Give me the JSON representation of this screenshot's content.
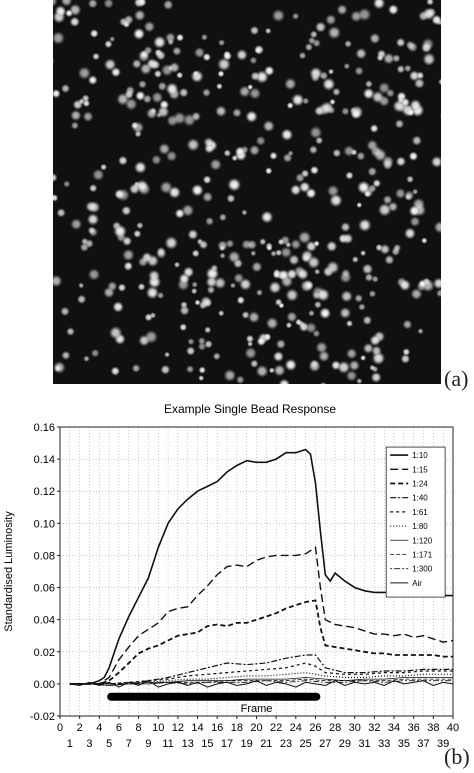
{
  "panels": {
    "a_label": "(a)",
    "b_label": "(b)"
  },
  "micrograph": {
    "description_icon": "fluorescent-bead-micrograph"
  },
  "chart_data": {
    "type": "line",
    "title": "Example Single Bead Response",
    "xlabel": "Frame",
    "ylabel": "Standardised Luminosity",
    "xlim": [
      0,
      40
    ],
    "ylim": [
      -0.02,
      0.16
    ],
    "yticks": [
      -0.02,
      0,
      0.02,
      0.04,
      0.06,
      0.08,
      0.1,
      0.12,
      0.14,
      0.16
    ],
    "ytick_labels": [
      "-0.02",
      "0.00",
      "0.02",
      "0.04",
      "0.06",
      "0.08",
      "0.10",
      "0.12",
      "0.14",
      "0.16"
    ],
    "xticks_top": [
      0,
      2,
      4,
      6,
      8,
      10,
      12,
      14,
      16,
      18,
      20,
      22,
      24,
      26,
      28,
      30,
      32,
      34,
      36,
      38,
      40
    ],
    "xticks_bottom": [
      1,
      3,
      5,
      7,
      9,
      11,
      13,
      15,
      17,
      19,
      21,
      23,
      25,
      27,
      29,
      31,
      33,
      35,
      37,
      39
    ],
    "grid": true,
    "legend_position": "top-right",
    "exposure_bar": {
      "x_start": 4.8,
      "x_end": 26.5,
      "y": -0.008
    },
    "series": [
      {
        "name": "1:10",
        "dash": "",
        "width": 1.6,
        "x": [
          1,
          2,
          3,
          4,
          4.5,
          5,
          6,
          7,
          8,
          9,
          10,
          11,
          12,
          13,
          14,
          15,
          16,
          17,
          18,
          19,
          20,
          21,
          22,
          23,
          24,
          25,
          25.5,
          26,
          26.5,
          27,
          27.5,
          28,
          29,
          30,
          31,
          32,
          33,
          34,
          35,
          36,
          37,
          38,
          39,
          40
        ],
        "y": [
          0,
          0,
          0,
          0.002,
          0.004,
          0.01,
          0.028,
          0.042,
          0.054,
          0.066,
          0.085,
          0.1,
          0.109,
          0.115,
          0.12,
          0.123,
          0.126,
          0.132,
          0.136,
          0.139,
          0.138,
          0.138,
          0.14,
          0.144,
          0.144,
          0.146,
          0.143,
          0.125,
          0.095,
          0.068,
          0.064,
          0.069,
          0.064,
          0.06,
          0.058,
          0.057,
          0.057,
          0.057,
          0.056,
          0.056,
          0.056,
          0.056,
          0.055,
          0.055
        ]
      },
      {
        "name": "1:15",
        "dash": "8,4",
        "width": 1.4,
        "x": [
          1,
          2,
          3,
          4,
          5,
          6,
          7,
          8,
          9,
          10,
          11,
          12,
          13,
          14,
          15,
          16,
          17,
          18,
          19,
          20,
          21,
          22,
          23,
          24,
          25,
          26,
          26.5,
          27,
          28,
          29,
          30,
          31,
          32,
          33,
          34,
          35,
          36,
          37,
          38,
          39,
          40
        ],
        "y": [
          0,
          0,
          0,
          0,
          0.004,
          0.015,
          0.023,
          0.03,
          0.034,
          0.038,
          0.045,
          0.047,
          0.048,
          0.055,
          0.061,
          0.068,
          0.073,
          0.074,
          0.073,
          0.077,
          0.079,
          0.08,
          0.08,
          0.08,
          0.081,
          0.085,
          0.06,
          0.04,
          0.037,
          0.036,
          0.035,
          0.033,
          0.031,
          0.031,
          0.03,
          0.031,
          0.029,
          0.03,
          0.028,
          0.026,
          0.027
        ]
      },
      {
        "name": "1:24",
        "dash": "5,3",
        "width": 1.8,
        "x": [
          1,
          2,
          3,
          4,
          5,
          6,
          7,
          8,
          9,
          10,
          11,
          12,
          13,
          14,
          15,
          16,
          17,
          18,
          19,
          20,
          21,
          22,
          23,
          24,
          25,
          26,
          26.5,
          27,
          28,
          29,
          30,
          31,
          32,
          33,
          34,
          35,
          36,
          37,
          38,
          39,
          40
        ],
        "y": [
          0,
          0,
          0,
          0,
          0.002,
          0.007,
          0.013,
          0.019,
          0.022,
          0.024,
          0.027,
          0.03,
          0.031,
          0.032,
          0.036,
          0.037,
          0.036,
          0.038,
          0.038,
          0.04,
          0.042,
          0.044,
          0.047,
          0.049,
          0.051,
          0.052,
          0.035,
          0.024,
          0.023,
          0.022,
          0.021,
          0.02,
          0.019,
          0.019,
          0.018,
          0.018,
          0.018,
          0.018,
          0.018,
          0.017,
          0.017
        ]
      },
      {
        "name": "1:40",
        "dash": "6,2,2,2",
        "width": 1.2,
        "x": [
          1,
          3,
          5,
          7,
          9,
          11,
          13,
          15,
          17,
          19,
          21,
          23,
          25,
          26,
          27,
          29,
          31,
          33,
          35,
          37,
          39,
          40
        ],
        "y": [
          0,
          0,
          0,
          0,
          0.002,
          0.004,
          0.007,
          0.01,
          0.013,
          0.012,
          0.013,
          0.016,
          0.018,
          0.018,
          0.01,
          0.007,
          0.007,
          0.008,
          0.008,
          0.009,
          0.009,
          0.009
        ]
      },
      {
        "name": "1:61",
        "dash": "3,3",
        "width": 1.2,
        "x": [
          1,
          3,
          5,
          7,
          9,
          11,
          13,
          15,
          17,
          19,
          21,
          23,
          25,
          26,
          27,
          29,
          31,
          33,
          35,
          37,
          39,
          40
        ],
        "y": [
          0,
          0,
          0,
          0.001,
          0.002,
          0.003,
          0.005,
          0.006,
          0.007,
          0.008,
          0.009,
          0.01,
          0.013,
          0.011,
          0.007,
          0.006,
          0.006,
          0.007,
          0.007,
          0.008,
          0.008,
          0.008
        ]
      },
      {
        "name": "1:80",
        "dash": "1,2",
        "width": 1.2,
        "x": [
          1,
          3,
          5,
          7,
          9,
          11,
          13,
          15,
          17,
          19,
          21,
          23,
          25,
          27,
          29,
          31,
          33,
          35,
          37,
          39,
          40
        ],
        "y": [
          0,
          0,
          0,
          0.001,
          0.001,
          0.002,
          0.003,
          0.003,
          0.004,
          0.005,
          0.005,
          0.006,
          0.007,
          0.005,
          0.004,
          0.004,
          0.005,
          0.005,
          0.006,
          0.006,
          0.006
        ]
      },
      {
        "name": "1:120",
        "dash": "",
        "width": 0.8,
        "x": [
          1,
          3,
          5,
          7,
          9,
          11,
          13,
          15,
          17,
          19,
          21,
          23,
          25,
          27,
          29,
          31,
          33,
          35,
          37,
          39,
          40
        ],
        "y": [
          0,
          0,
          -0.001,
          0,
          0.001,
          0.001,
          0.002,
          0.002,
          0.002,
          0.003,
          0.003,
          0.003,
          0.004,
          0.003,
          0.002,
          0.003,
          0.003,
          0.004,
          0.004,
          0.004,
          0.004
        ]
      },
      {
        "name": "1:171",
        "dash": "4,2",
        "width": 0.8,
        "x": [
          1,
          3,
          5,
          7,
          9,
          11,
          13,
          15,
          17,
          19,
          21,
          23,
          25,
          27,
          29,
          31,
          33,
          35,
          37,
          39,
          40
        ],
        "y": [
          0,
          0,
          0,
          0,
          0,
          0.001,
          0.001,
          0.001,
          0.002,
          0.002,
          0.002,
          0.002,
          0.003,
          0.002,
          0.002,
          0.002,
          0.002,
          0.003,
          0.003,
          0.003,
          0.003
        ]
      },
      {
        "name": "1:300",
        "dash": "2,2,6,2",
        "width": 0.8,
        "x": [
          1,
          3,
          5,
          7,
          9,
          11,
          13,
          15,
          17,
          19,
          21,
          23,
          25,
          27,
          29,
          31,
          33,
          35,
          37,
          39,
          40
        ],
        "y": [
          0,
          0,
          -0.001,
          0,
          0,
          0.001,
          0,
          0.001,
          0.001,
          0.001,
          0.002,
          0.001,
          0.002,
          0.001,
          0.001,
          0.002,
          0.001,
          0.002,
          0.002,
          0.002,
          0.002
        ]
      },
      {
        "name": "Air",
        "dash": "",
        "width": 1.0,
        "x": [
          1,
          2,
          3,
          4,
          5,
          6,
          7,
          8,
          9,
          10,
          11,
          12,
          13,
          14,
          15,
          16,
          17,
          18,
          19,
          20,
          21,
          22,
          23,
          24,
          25,
          26,
          27,
          28,
          29,
          30,
          31,
          32,
          33,
          34,
          35,
          36,
          37,
          38,
          39,
          40
        ],
        "y": [
          0,
          -0.001,
          0.001,
          -0.001,
          0.001,
          -0.002,
          0.001,
          -0.001,
          0.002,
          -0.002,
          0,
          0.001,
          -0.001,
          0.001,
          -0.002,
          0,
          0.001,
          -0.001,
          0,
          0.002,
          -0.001,
          0.001,
          0,
          -0.002,
          0.001,
          0,
          -0.001,
          0.002,
          -0.001,
          0.001,
          0,
          0.001,
          -0.001,
          0.002,
          0,
          0.001,
          0.002,
          -0.001,
          0.001,
          0
        ]
      }
    ]
  }
}
